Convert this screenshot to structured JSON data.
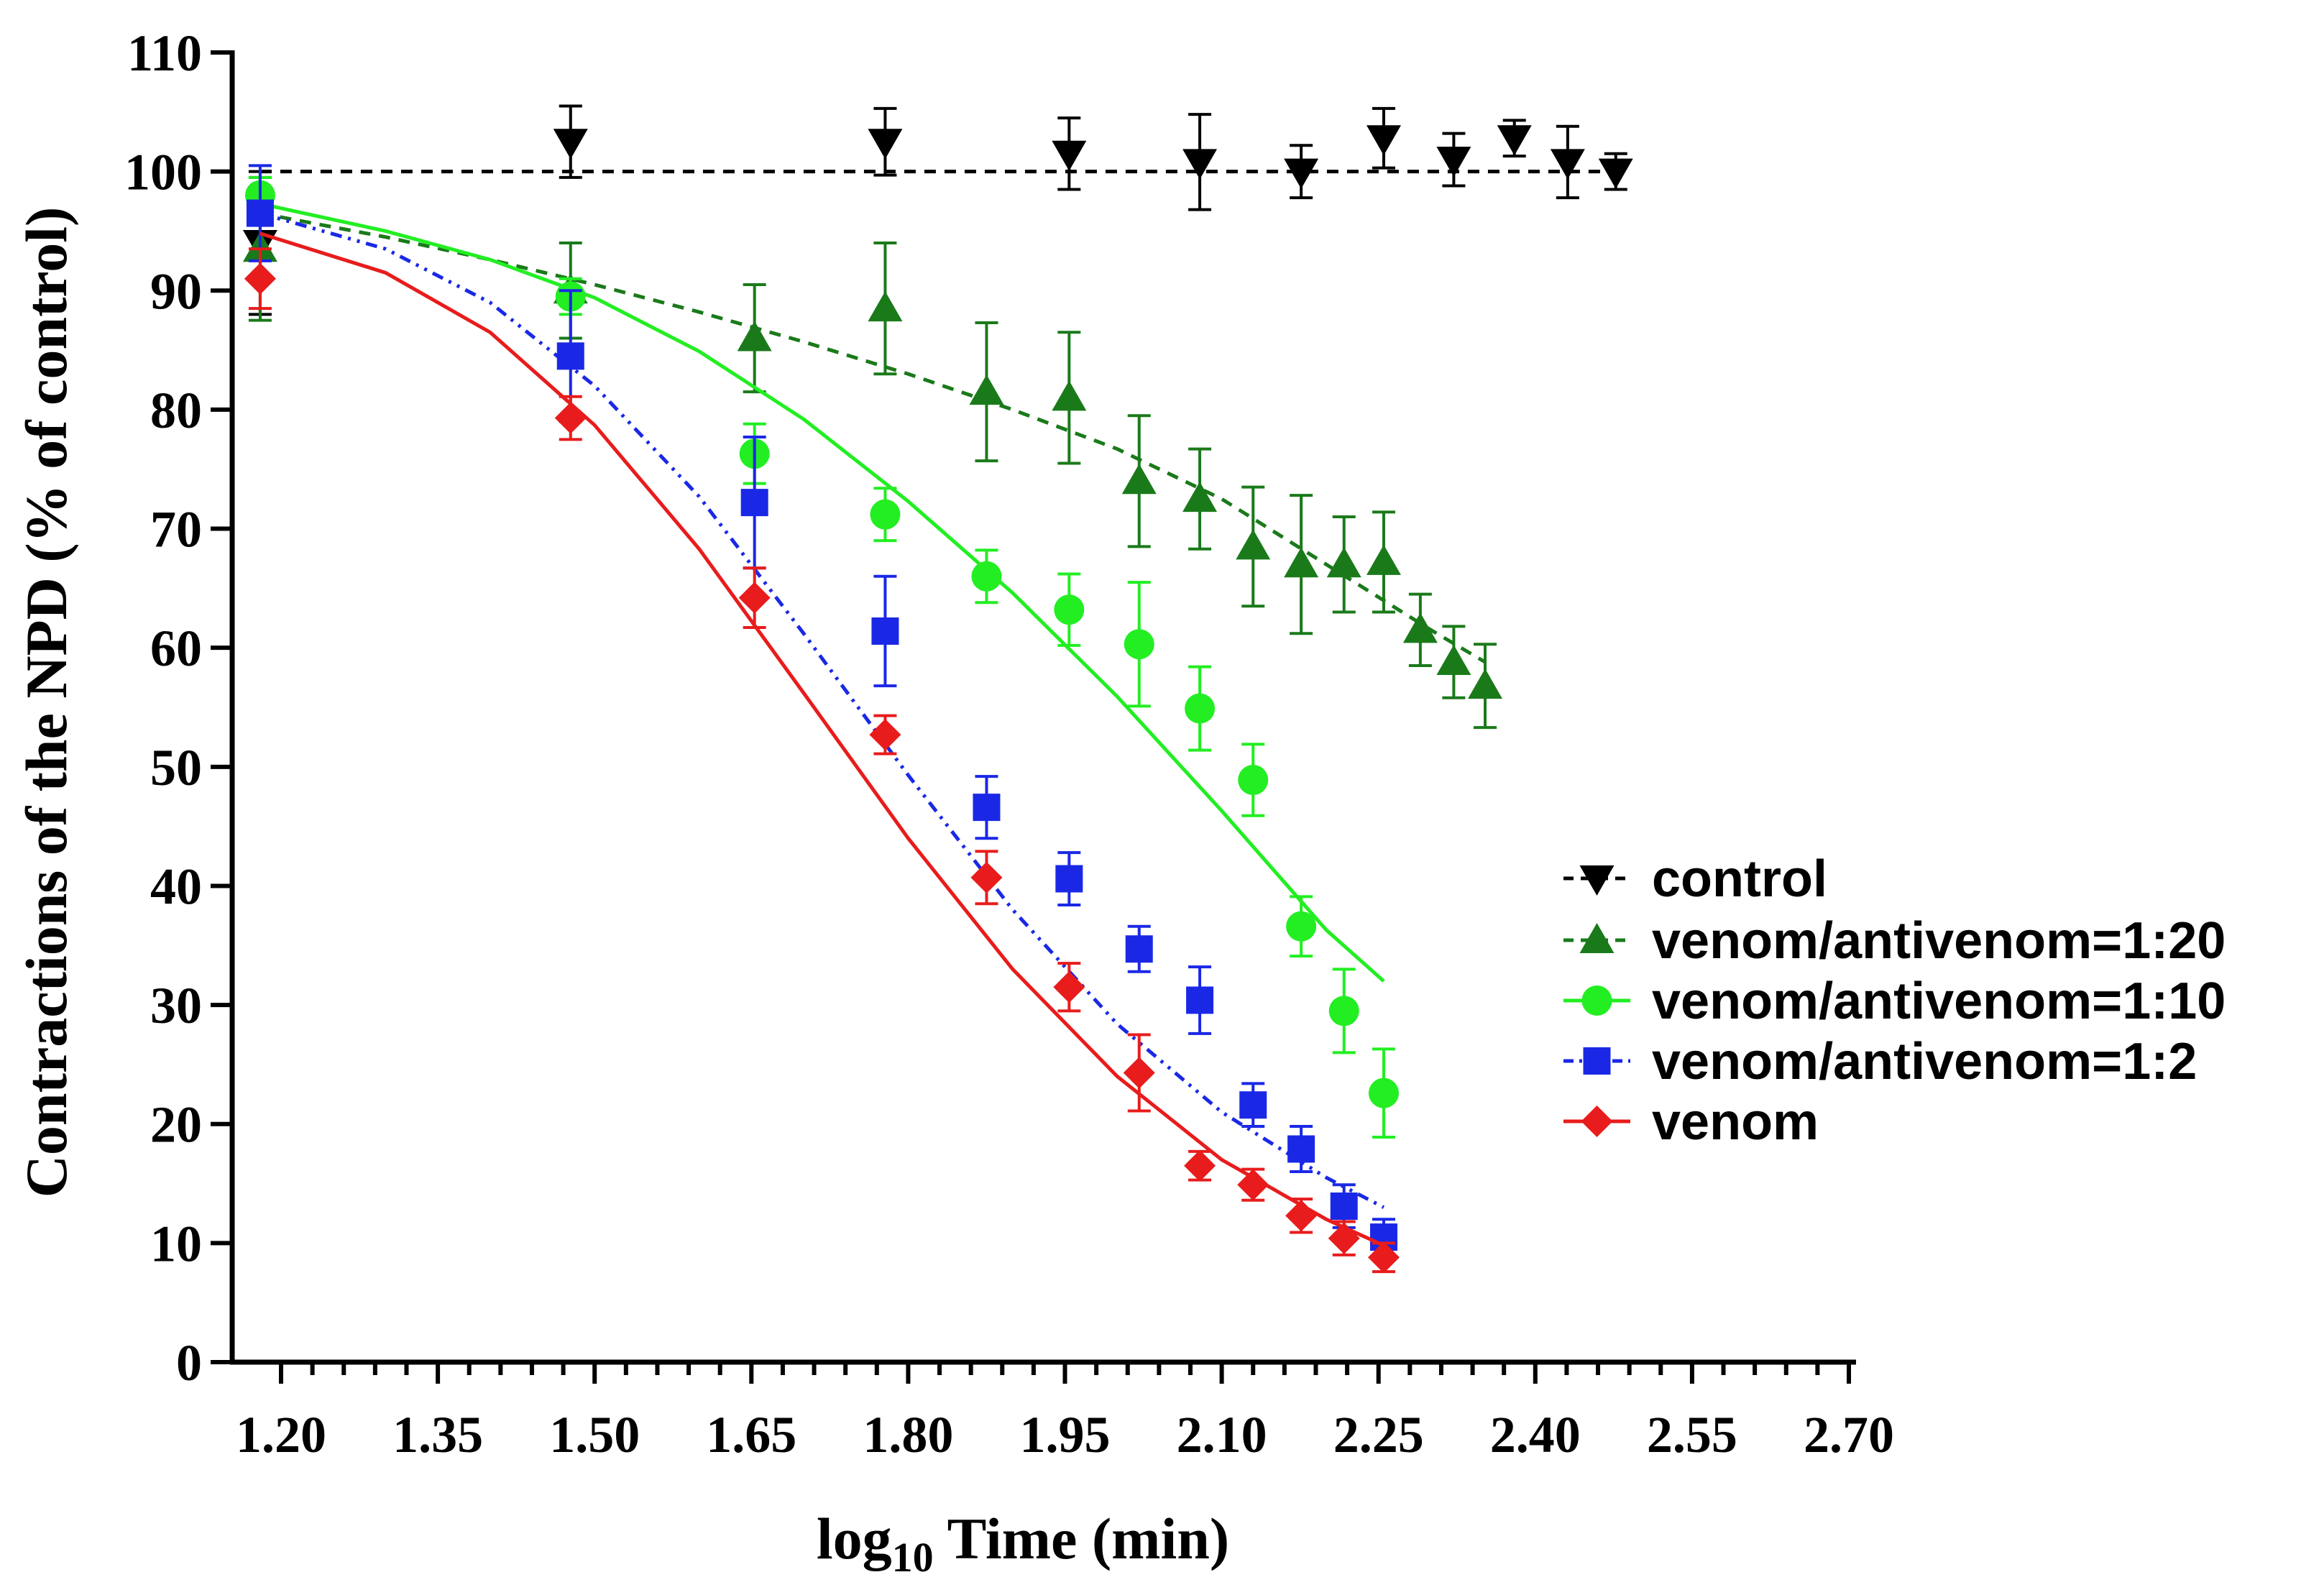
{
  "chart_data": {
    "type": "scatter",
    "xlabel": "log10 Time (min)",
    "xlabel_main": "log",
    "xlabel_sub": "10",
    "xlabel_rest": " Time (min)",
    "ylabel": "Contractions of the NPD (% of control)",
    "xlim": [
      1.18,
      2.7
    ],
    "ylim": [
      0,
      110
    ],
    "xticks": [
      1.2,
      1.35,
      1.5,
      1.65,
      1.8,
      1.95,
      2.1,
      2.25,
      2.4,
      2.55,
      2.7
    ],
    "xtick_labels": [
      "1.20",
      "1.35",
      "1.50",
      "1.65",
      "1.80",
      "1.95",
      "2.10",
      "2.25",
      "2.40",
      "2.55",
      "2.70"
    ],
    "yticks": [
      0,
      10,
      20,
      30,
      40,
      50,
      60,
      70,
      80,
      90,
      100,
      110
    ],
    "ytick_labels": [
      "0",
      "10",
      "20",
      "30",
      "40",
      "50",
      "60",
      "70",
      "80",
      "90",
      "100",
      "110"
    ],
    "legend_position": "right",
    "series": [
      {
        "name": "control",
        "color": "#000000",
        "marker": "triangle-down",
        "line_style": "dashed",
        "x": [
          1.18,
          1.477,
          1.778,
          1.954,
          2.079,
          2.176,
          2.255,
          2.322,
          2.38,
          2.431,
          2.477
        ],
        "y": [
          94,
          102.5,
          102.5,
          101.5,
          100.8,
          100,
          102.8,
          101,
          102.8,
          100.8,
          100
        ],
        "err": [
          6,
          3,
          2.8,
          3,
          4,
          2.2,
          2.5,
          2.2,
          1.5,
          3,
          1.5
        ],
        "fit": {
          "x": [
            1.18,
            2.477
          ],
          "y": [
            100,
            100
          ]
        }
      },
      {
        "name": "venom/antivenom=1:20",
        "color": "#1a7a1a",
        "marker": "triangle-up",
        "line_style": "dashed",
        "x": [
          1.18,
          1.477,
          1.653,
          1.778,
          1.875,
          1.954,
          2.021,
          2.079,
          2.13,
          2.176,
          2.217,
          2.255,
          2.29,
          2.322,
          2.352
        ],
        "y": [
          93.5,
          90,
          86,
          88.5,
          81.5,
          81,
          74,
          72.5,
          68.5,
          67,
          67,
          67.2,
          61.5,
          58.8,
          56.8
        ],
        "err": [
          6,
          4,
          4.5,
          5.5,
          5.8,
          5.5,
          5.5,
          4.2,
          5,
          5.8,
          4,
          4.2,
          3,
          3,
          3.5
        ],
        "fit": {
          "x": [
            1.18,
            1.3,
            1.4,
            1.5,
            1.6,
            1.7,
            1.8,
            1.9,
            2.0,
            2.1,
            2.2,
            2.3,
            2.352
          ],
          "y": [
            96.5,
            94.5,
            92.6,
            90.5,
            88.2,
            85.7,
            83.0,
            80.0,
            76.7,
            72.5,
            67.0,
            61.5,
            58.8
          ]
        }
      },
      {
        "name": "venom/antivenom=1:10",
        "color": "#22ee22",
        "marker": "circle",
        "line_style": "solid",
        "x": [
          1.18,
          1.477,
          1.653,
          1.778,
          1.875,
          1.954,
          2.021,
          2.079,
          2.13,
          2.176,
          2.217,
          2.255
        ],
        "y": [
          98,
          89.5,
          76.3,
          71.2,
          66,
          63.2,
          60.3,
          54.9,
          48.9,
          36.6,
          29.5,
          22.6
        ],
        "err": [
          1.5,
          1.5,
          2.5,
          2.2,
          2.2,
          3,
          5.2,
          3.5,
          3,
          2.5,
          3.5,
          3.7
        ],
        "fit": {
          "x": [
            1.18,
            1.3,
            1.4,
            1.5,
            1.6,
            1.7,
            1.8,
            1.9,
            2.0,
            2.1,
            2.2,
            2.255
          ],
          "y": [
            97.3,
            95.0,
            92.6,
            89.4,
            84.9,
            79.2,
            72.3,
            64.6,
            55.9,
            46.3,
            36.3,
            32.0
          ]
        }
      },
      {
        "name": "venom/antivenom=1:2",
        "color": "#1a28e6",
        "marker": "square",
        "line_style": "dashdotdot",
        "x": [
          1.18,
          1.477,
          1.653,
          1.778,
          1.875,
          1.954,
          2.021,
          2.079,
          2.13,
          2.176,
          2.217,
          2.255
        ],
        "y": [
          96.5,
          84.5,
          72.2,
          61.4,
          46.6,
          40.6,
          34.7,
          30.4,
          21.6,
          17.9,
          13.1,
          10.5
        ],
        "err": [
          4,
          5.5,
          5.5,
          4.6,
          2.6,
          2.2,
          1.9,
          2.8,
          1.8,
          1.9,
          1.8,
          1.5
        ],
        "fit": {
          "x": [
            1.18,
            1.3,
            1.4,
            1.5,
            1.6,
            1.7,
            1.8,
            1.9,
            2.0,
            2.1,
            2.2,
            2.255
          ],
          "y": [
            96.5,
            93.5,
            89.0,
            82.0,
            72.7,
            61.2,
            49.3,
            38.0,
            28.4,
            21.0,
            15.5,
            13.0
          ]
        }
      },
      {
        "name": "venom",
        "color": "#e81c1c",
        "marker": "diamond",
        "line_style": "solid",
        "x": [
          1.18,
          1.477,
          1.653,
          1.778,
          1.875,
          1.954,
          2.021,
          2.079,
          2.13,
          2.176,
          2.217,
          2.255
        ],
        "y": [
          91,
          79.3,
          64.2,
          52.7,
          40.7,
          31.5,
          24.3,
          16.5,
          14.9,
          12.3,
          10.4,
          8.8
        ],
        "err": [
          2.5,
          1.8,
          2.5,
          1.6,
          2.2,
          2,
          3.2,
          1.2,
          1.3,
          1.4,
          1.4,
          1.2
        ],
        "fit": {
          "x": [
            1.18,
            1.3,
            1.4,
            1.5,
            1.6,
            1.7,
            1.8,
            1.9,
            2.0,
            2.1,
            2.2,
            2.255
          ],
          "y": [
            94.8,
            91.5,
            86.5,
            78.7,
            68.3,
            56.2,
            44.0,
            33.0,
            24.0,
            17.0,
            12.0,
            9.8
          ]
        }
      }
    ]
  }
}
